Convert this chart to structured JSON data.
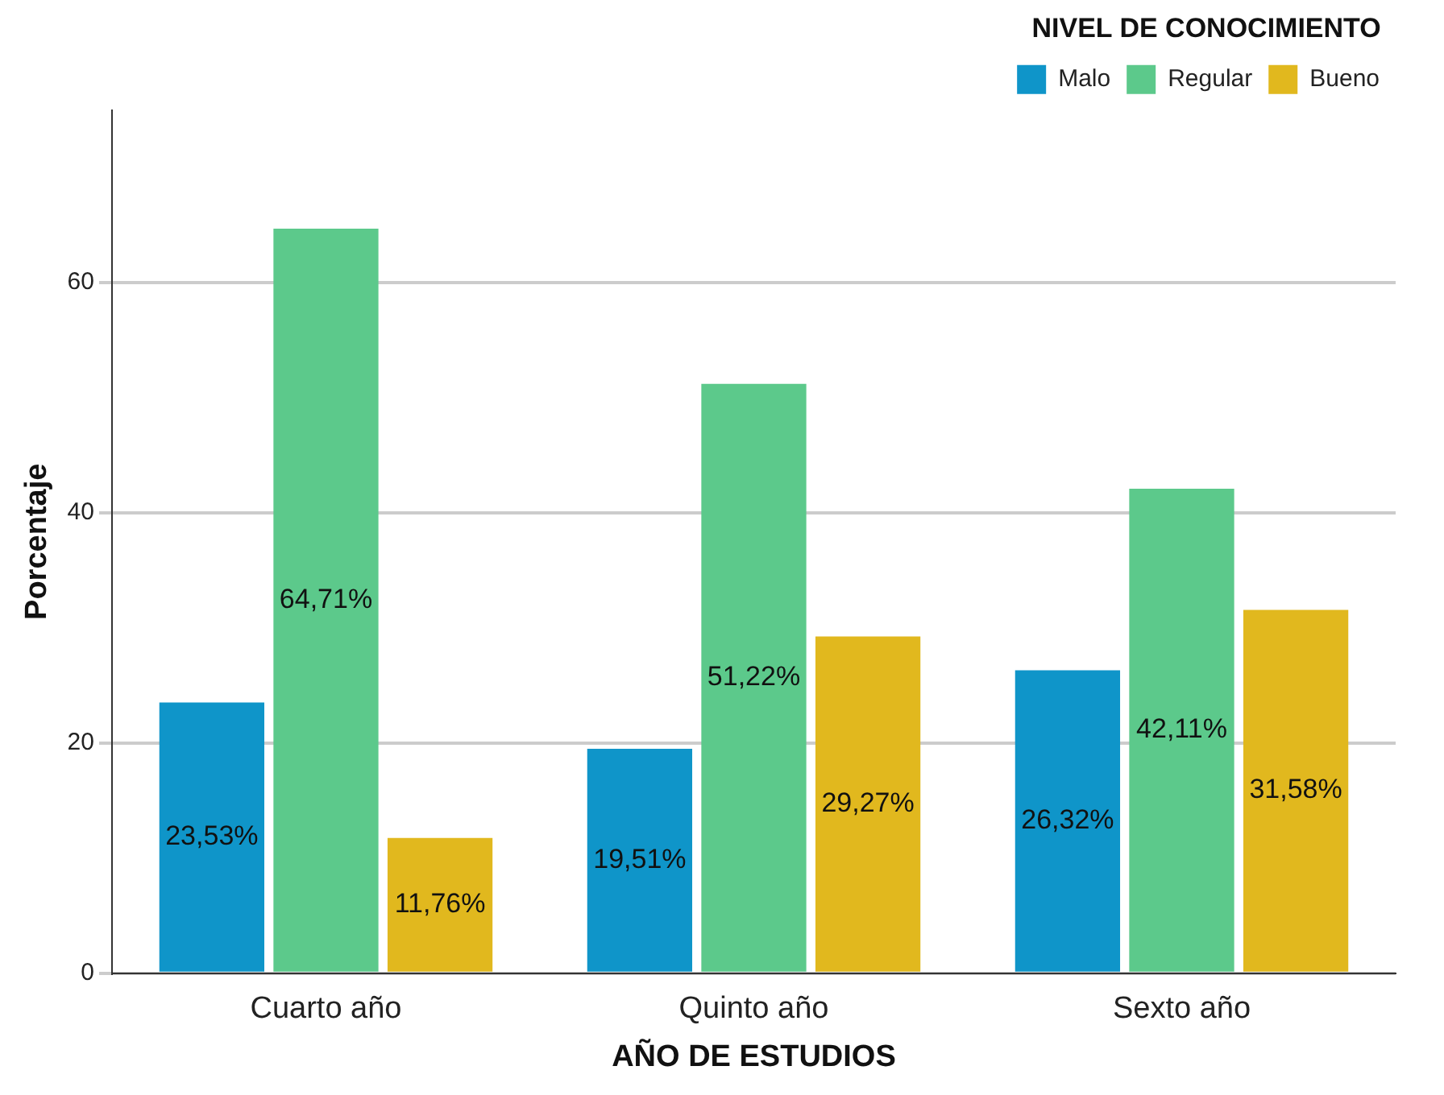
{
  "chart_data": {
    "type": "bar",
    "xlabel": "AÑO DE ESTUDIOS",
    "ylabel": "Porcentaje",
    "legend_title": "NIVEL DE CONOCIMIENTO",
    "categories": [
      "Cuarto año",
      "Quinto año",
      "Sexto año"
    ],
    "series": [
      {
        "name": "Malo",
        "color": "#0f95c9",
        "values": [
          23.53,
          19.51,
          26.32
        ],
        "value_labels": [
          "23,53%",
          "19,51%",
          "26,32%"
        ]
      },
      {
        "name": "Regular",
        "color": "#5cc98b",
        "values": [
          64.71,
          51.22,
          42.11
        ],
        "value_labels": [
          "64,71%",
          "51,22%",
          "42,11%"
        ]
      },
      {
        "name": "Bueno",
        "color": "#e1b81e",
        "values": [
          11.76,
          29.27,
          31.58
        ],
        "value_labels": [
          "11,76%",
          "29,27%",
          "31,58%"
        ]
      }
    ],
    "ylim": [
      0,
      75
    ],
    "yticks": [
      0,
      20,
      40,
      60
    ],
    "grid": "y",
    "legend": "top right"
  }
}
